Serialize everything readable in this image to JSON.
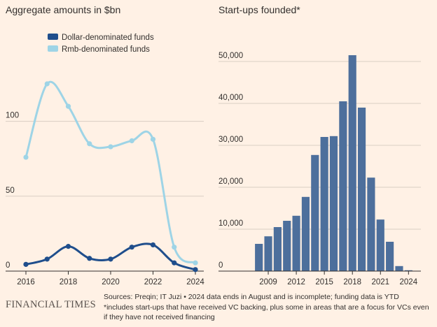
{
  "chart_data": [
    {
      "type": "line",
      "title": "Aggregate amounts in $bn",
      "x": [
        2016,
        2017,
        2018,
        2019,
        2020,
        2021,
        2022,
        2023,
        2024
      ],
      "xticks": [
        "2016",
        "2018",
        "2020",
        "2022",
        "2024"
      ],
      "yticks": [
        "0",
        "50",
        "100"
      ],
      "ylim": [
        0,
        125
      ],
      "xlabel": "",
      "ylabel": "",
      "grid": true,
      "legend": "top",
      "series": [
        {
          "name": "Dollar-denominated funds",
          "color": "#1f4e8c",
          "values": [
            4.5,
            8,
            16.5,
            8.5,
            8,
            16,
            17.5,
            5.5,
            1
          ]
        },
        {
          "name": "Rmb-denominated funds",
          "color": "#9ed4e6",
          "values": [
            76,
            125,
            110,
            85,
            83,
            87,
            88,
            16,
            5.5
          ]
        }
      ]
    },
    {
      "type": "bar",
      "title": "Start-ups founded*",
      "categories": [
        2008,
        2009,
        2010,
        2011,
        2012,
        2013,
        2014,
        2015,
        2016,
        2017,
        2018,
        2019,
        2020,
        2021,
        2022,
        2023,
        2024
      ],
      "values": [
        6500,
        8300,
        10500,
        12000,
        13200,
        17700,
        27700,
        32000,
        32200,
        40500,
        51500,
        39000,
        22300,
        12300,
        7000,
        1200,
        200
      ],
      "xticks": [
        "2009",
        "2012",
        "2015",
        "2018",
        "2021",
        "2024"
      ],
      "yticks": [
        "0",
        "10,000",
        "20,000",
        "30,000",
        "40,000",
        "50,000"
      ],
      "ylim": [
        0,
        52000
      ],
      "color": "#4d6f9c",
      "grid": true,
      "xlabel": "",
      "ylabel": ""
    }
  ],
  "footer": {
    "logo": "FINANCIAL TIMES",
    "line1": "Sources: Preqin; IT Juzi • 2024 data ends in August and is incomplete; funding data is YTD",
    "line2": "*includes start-ups that have received VC backing, plus some in areas that are a focus for VCs even if they have not received financing"
  }
}
